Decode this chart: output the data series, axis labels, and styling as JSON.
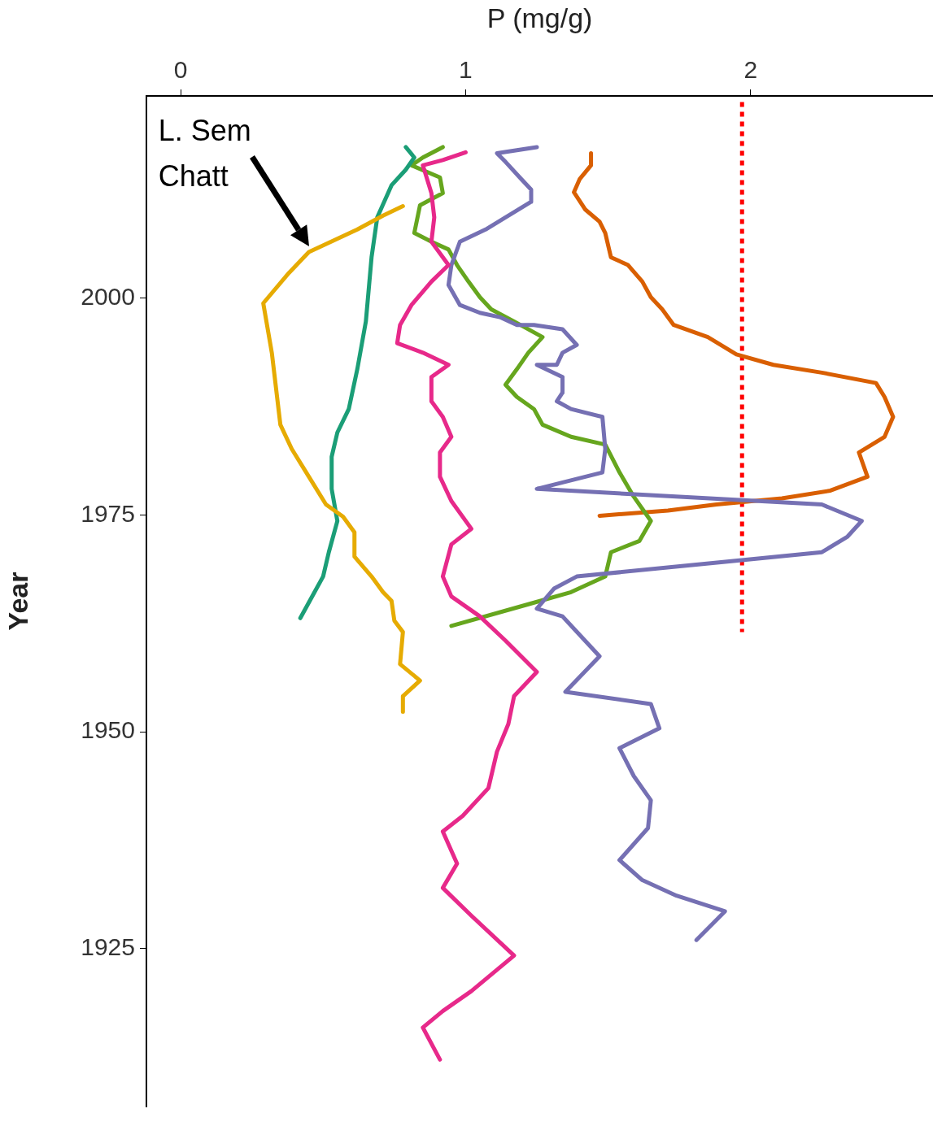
{
  "chart_data": {
    "type": "line",
    "xlabel": "P (mg/g)",
    "ylabel": "Year",
    "xlim": [
      -0.12,
      2.64
    ],
    "xticks": [
      0,
      1,
      2
    ],
    "ylim": [
      1906.8,
      2023.3
    ],
    "yticks": [
      1925,
      1950,
      1975,
      2000
    ],
    "marker": "none",
    "annotations": [
      {
        "text": "L. Sem\nChatt",
        "x": 0.45,
        "y": 2006
      }
    ],
    "series": [
      {
        "color": "#e6ab02",
        "x": [
          0.78,
          0.71,
          0.62,
          0.45,
          0.38,
          0.29,
          0.32,
          0.35,
          0.39,
          0.45,
          0.51,
          0.57,
          0.61,
          0.61,
          0.67,
          0.71,
          0.74,
          0.75,
          0.78,
          0.77,
          0.84,
          0.78,
          0.78
        ],
        "values": [
          2010.6,
          2009.5,
          2007.9,
          2005.3,
          2002.9,
          1999.4,
          1993.7,
          1985.4,
          1982.6,
          1979.4,
          1976.2,
          1974.8,
          1973.0,
          1970.2,
          1967.9,
          1966.1,
          1965.1,
          1962.8,
          1961.5,
          1957.8,
          1955.9,
          1954.1,
          1952.3
        ]
      },
      {
        "color": "#1b9e77",
        "x": [
          0.79,
          0.82,
          0.79,
          0.74,
          0.69,
          0.67,
          0.65,
          0.62,
          0.59,
          0.55,
          0.53,
          0.53,
          0.55,
          0.52,
          0.5,
          0.47,
          0.42
        ],
        "values": [
          2017.4,
          2016.2,
          2014.8,
          2013.0,
          2009.3,
          2004.7,
          1997.3,
          1991.8,
          1987.2,
          1984.5,
          1981.7,
          1978.0,
          1974.3,
          1970.7,
          1967.9,
          1966.1,
          1963.1
        ]
      },
      {
        "color": "#e7298a",
        "x": [
          1.0,
          0.92,
          0.85,
          0.88,
          0.89,
          0.88,
          0.94,
          0.88,
          0.81,
          0.77,
          0.76,
          0.85,
          0.94,
          0.88,
          0.88,
          0.92,
          0.95,
          0.91,
          0.91,
          0.95,
          1.02,
          0.95,
          0.92,
          0.95,
          1.05,
          1.14,
          1.25,
          1.17,
          1.15,
          1.11,
          1.08,
          0.99,
          0.92,
          0.97,
          0.92,
          1.02,
          1.17,
          1.02,
          0.92,
          0.85,
          0.91
        ],
        "values": [
          2016.8,
          2015.9,
          2015.3,
          2012.1,
          2009.3,
          2006.5,
          2003.8,
          2001.9,
          1999.2,
          1996.9,
          1994.8,
          1993.7,
          1992.3,
          1990.9,
          1988.1,
          1986.3,
          1984.0,
          1982.2,
          1979.4,
          1976.6,
          1973.4,
          1971.6,
          1967.9,
          1965.6,
          1963.3,
          1960.5,
          1956.9,
          1954.1,
          1950.9,
          1947.7,
          1943.5,
          1940.3,
          1938.5,
          1934.8,
          1932.0,
          1928.8,
          1924.2,
          1920.1,
          1917.8,
          1915.9,
          1912.2
        ]
      },
      {
        "color": "#7570b3",
        "x": [
          1.25,
          1.11,
          1.14,
          1.19,
          1.23,
          1.23,
          1.14,
          1.07,
          0.98,
          0.95,
          0.94,
          0.98,
          1.05,
          1.12,
          1.18,
          1.24,
          1.34,
          1.39,
          1.34,
          1.32,
          1.25,
          1.34,
          1.34,
          1.32,
          1.37,
          1.48,
          1.49,
          1.48,
          1.25,
          2.25,
          2.39,
          2.34,
          2.25,
          1.94,
          1.39,
          1.31,
          1.25,
          1.34,
          1.47,
          1.35,
          1.65,
          1.68,
          1.54,
          1.59,
          1.65,
          1.64,
          1.54,
          1.62,
          1.74,
          1.91,
          1.81
        ],
        "values": [
          2017.4,
          2016.7,
          2015.7,
          2013.9,
          2012.5,
          2011.1,
          2009.3,
          2007.9,
          2006.5,
          2003.8,
          2001.5,
          1999.2,
          1998.3,
          1997.8,
          1996.9,
          1996.9,
          1996.4,
          1994.6,
          1993.7,
          1992.3,
          1992.3,
          1990.9,
          1989.1,
          1988.1,
          1987.2,
          1986.3,
          1982.6,
          1979.9,
          1978.0,
          1976.2,
          1974.3,
          1972.5,
          1970.7,
          1969.7,
          1967.9,
          1966.5,
          1964.2,
          1963.3,
          1958.7,
          1954.6,
          1953.2,
          1950.4,
          1948.1,
          1944.9,
          1942.1,
          1938.9,
          1935.2,
          1932.9,
          1931.1,
          1929.3,
          1926.0
        ]
      },
      {
        "color": "#66a61e",
        "x": [
          0.92,
          0.85,
          0.81,
          0.91,
          0.92,
          0.84,
          0.82,
          0.88,
          0.94,
          0.97,
          1.01,
          1.05,
          1.09,
          1.17,
          1.27,
          1.22,
          1.18,
          1.14,
          1.18,
          1.24,
          1.27,
          1.37,
          1.49,
          1.54,
          1.59,
          1.65,
          1.61,
          1.51,
          1.49,
          1.37,
          1.22,
          0.95
        ],
        "values": [
          2017.4,
          2016.2,
          2015.3,
          2013.9,
          2012.1,
          2010.7,
          2007.5,
          2006.5,
          2005.6,
          2003.8,
          2001.9,
          2000.1,
          1998.7,
          1997.3,
          1995.5,
          1993.7,
          1991.8,
          1990.0,
          1988.6,
          1987.2,
          1985.4,
          1984.0,
          1983.1,
          1979.9,
          1977.1,
          1974.3,
          1972.0,
          1970.7,
          1967.9,
          1966.1,
          1964.7,
          1962.2
        ]
      },
      {
        "color": "#d95f02",
        "x": [
          1.44,
          1.44,
          1.4,
          1.38,
          1.42,
          1.47,
          1.49,
          1.51,
          1.57,
          1.62,
          1.65,
          1.69,
          1.73,
          1.85,
          1.95,
          2.08,
          2.25,
          2.44,
          2.47,
          2.5,
          2.47,
          2.38,
          2.41,
          2.28,
          2.11,
          1.88,
          1.71,
          1.47
        ],
        "values": [
          2016.7,
          2015.3,
          2013.7,
          2012.2,
          2010.2,
          2008.8,
          2007.5,
          2004.7,
          2003.8,
          2001.9,
          2000.1,
          1998.7,
          1996.9,
          1995.5,
          1993.5,
          1992.3,
          1991.4,
          1990.2,
          1988.6,
          1986.3,
          1984.0,
          1982.2,
          1979.4,
          1977.8,
          1976.9,
          1976.2,
          1975.5,
          1974.9
        ]
      },
      {
        "color": "#ff0000",
        "line_style": "dotted",
        "x": [
          1.97,
          1.97
        ],
        "values": [
          2022.6,
          1961.5
        ]
      }
    ]
  }
}
